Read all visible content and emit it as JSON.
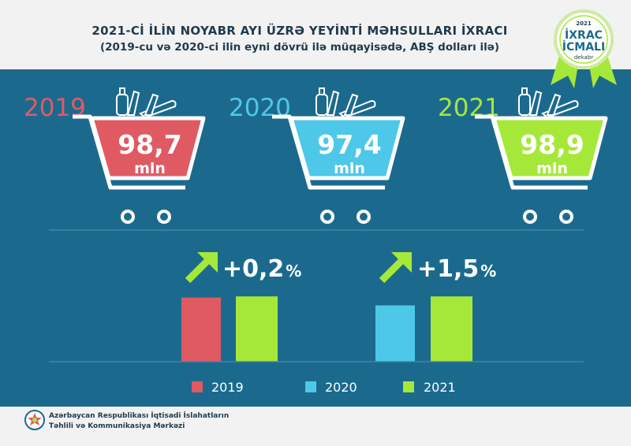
{
  "header": {
    "title": "2021-Cİ İLİN NOYABR AYI ÜZRƏ YEYİNTİ MƏHSULLARI İXRACI",
    "subtitle": "(2019-cu və 2020-ci ilin eyni dövrü ilə müqayisədə, ABŞ dolları ilə)"
  },
  "badge": {
    "year": "2021",
    "line1": "İXRAC",
    "line2": "İCMALI",
    "month": "dekabr"
  },
  "colors": {
    "2019": "#e05a64",
    "2020": "#4ec8e8",
    "2021": "#a6e83a",
    "panel": "#1b6a8e"
  },
  "carts": [
    {
      "year": "2019",
      "value": "98,7",
      "unit": "mln"
    },
    {
      "year": "2020",
      "value": "97,4",
      "unit": "mln"
    },
    {
      "year": "2021",
      "value": "98,9",
      "unit": "mln"
    }
  ],
  "changes": [
    "+0,2",
    "+1,5"
  ],
  "percent_sign": "%",
  "footer": {
    "line1": "Azərbaycan Respublikası İqtisadi İslahatların",
    "line2": "Təhlili və Kommunikasiya Mərkəzi"
  },
  "chart_data": {
    "type": "bar",
    "unit": "mln",
    "groups": [
      {
        "series": [
          "2019",
          "2021"
        ],
        "values": [
          98.7,
          98.9
        ],
        "change": "+0,2%"
      },
      {
        "series": [
          "2020",
          "2021"
        ],
        "values": [
          97.4,
          98.9
        ],
        "change": "+1,5%"
      }
    ],
    "legend": [
      "2019",
      "2020",
      "2021"
    ],
    "legend_position": "bottom"
  }
}
